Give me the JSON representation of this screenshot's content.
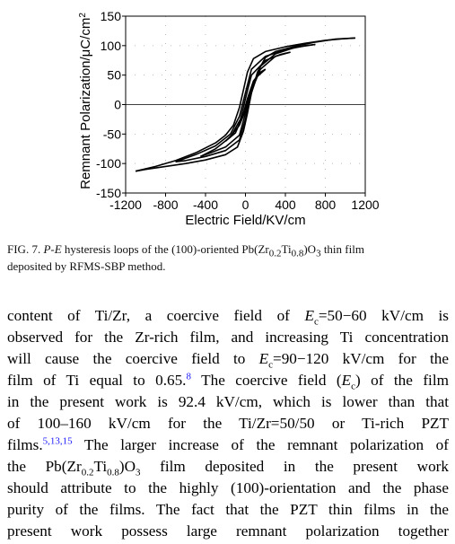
{
  "chart_data": {
    "type": "line",
    "xlabel": "Electric Field/KV/cm",
    "ylabel": "Remnant Polarization/μC/cm",
    "ylabel_sup": "2",
    "xlim": [
      -1200,
      1200
    ],
    "ylim": [
      -150,
      150
    ],
    "x_ticks": [
      -1200,
      -800,
      -400,
      0,
      400,
      800,
      1200
    ],
    "y_ticks": [
      150,
      100,
      50,
      0,
      -50,
      -100,
      -150
    ],
    "x_tick_labels": [
      "-1200",
      "-800",
      "-400",
      "0",
      "400",
      "800",
      "1200"
    ],
    "y_tick_labels": [
      "150",
      "100",
      "50",
      "0",
      "-50",
      "-100",
      "-150"
    ],
    "grid": "dotted",
    "zero_line": true,
    "series": [
      {
        "loop": "large",
        "upper": [
          [
            -1100,
            -113
          ],
          [
            -900,
            -105
          ],
          [
            -700,
            -95
          ],
          [
            -500,
            -82
          ],
          [
            -300,
            -65
          ],
          [
            -200,
            -52
          ],
          [
            -120,
            -35
          ],
          [
            -60,
            -5
          ],
          [
            -20,
            25
          ],
          [
            20,
            55
          ],
          [
            80,
            78
          ],
          [
            200,
            90
          ],
          [
            400,
            98
          ],
          [
            600,
            104
          ],
          [
            800,
            109
          ],
          [
            1000,
            112
          ],
          [
            1100,
            113
          ]
        ],
        "lower": [
          [
            1100,
            113
          ],
          [
            900,
            111
          ],
          [
            700,
            106
          ],
          [
            500,
            99
          ],
          [
            300,
            90
          ],
          [
            200,
            80
          ],
          [
            120,
            55
          ],
          [
            60,
            20
          ],
          [
            20,
            -15
          ],
          [
            -20,
            -45
          ],
          [
            -80,
            -72
          ],
          [
            -200,
            -85
          ],
          [
            -400,
            -94
          ],
          [
            -600,
            -100
          ],
          [
            -800,
            -105
          ],
          [
            -1000,
            -110
          ],
          [
            -1100,
            -113
          ]
        ]
      },
      {
        "loop": "medium",
        "upper": [
          [
            -700,
            -97
          ],
          [
            -500,
            -85
          ],
          [
            -300,
            -70
          ],
          [
            -150,
            -50
          ],
          [
            -60,
            -20
          ],
          [
            0,
            20
          ],
          [
            60,
            60
          ],
          [
            200,
            82
          ],
          [
            400,
            93
          ],
          [
            600,
            100
          ],
          [
            700,
            102
          ]
        ],
        "lower": [
          [
            700,
            102
          ],
          [
            500,
            97
          ],
          [
            300,
            86
          ],
          [
            150,
            65
          ],
          [
            60,
            20
          ],
          [
            0,
            -25
          ],
          [
            -60,
            -60
          ],
          [
            -200,
            -78
          ],
          [
            -400,
            -88
          ],
          [
            -600,
            -95
          ],
          [
            -700,
            -97
          ]
        ]
      },
      {
        "loop": "small",
        "upper": [
          [
            -450,
            -88
          ],
          [
            -300,
            -75
          ],
          [
            -150,
            -55
          ],
          [
            -50,
            -25
          ],
          [
            0,
            10
          ],
          [
            60,
            50
          ],
          [
            200,
            75
          ],
          [
            350,
            85
          ],
          [
            450,
            89
          ]
        ],
        "lower": [
          [
            450,
            89
          ],
          [
            300,
            82
          ],
          [
            150,
            60
          ],
          [
            50,
            20
          ],
          [
            0,
            -15
          ],
          [
            -60,
            -52
          ],
          [
            -200,
            -72
          ],
          [
            -350,
            -82
          ],
          [
            -450,
            -88
          ]
        ]
      },
      {
        "loop": "inner",
        "upper": [
          [
            -200,
            -62
          ],
          [
            -100,
            -48
          ],
          [
            -30,
            -20
          ],
          [
            20,
            10
          ],
          [
            80,
            40
          ],
          [
            150,
            55
          ],
          [
            200,
            60
          ]
        ],
        "lower": [
          [
            200,
            60
          ],
          [
            120,
            48
          ],
          [
            50,
            25
          ],
          [
            0,
            -10
          ],
          [
            -60,
            -35
          ],
          [
            -140,
            -52
          ],
          [
            -200,
            -62
          ]
        ]
      }
    ]
  },
  "caption": {
    "prefix": "FIG. 7. ",
    "pe": "P-E",
    "text1": " hysteresis loops of the (100)-oriented Pb(Zr",
    "sub1": "0.2",
    "text2": "Ti",
    "sub2": "0.8",
    "text3": ")O",
    "sub3": "3",
    "text4": " thin film",
    "line2": "deposited by RFMS-SBP method."
  },
  "body": {
    "l1a": "content of Ti/Zr, a coercive field of ",
    "l1ec": "E",
    "l1sub": "c",
    "l1b": "=50−60 kV/cm is",
    "l2": "observed for the Zr-rich film, and increasing Ti concentration",
    "l3a": "will cause the coercive field to ",
    "l3ec": "E",
    "l3sub": "c",
    "l3b": "=90−120 kV/cm for the",
    "l4a": "film of Ti equal to 0.65.",
    "l4ref": "8",
    "l4b": " The coercive field (",
    "l4ec": "E",
    "l4sub": "c",
    "l4c": ") of the film",
    "l5": "in the present work is 92.4 kV/cm, which is lower than that",
    "l6": "of 100–160 kV/cm for the Ti/Zr=50/50 or Ti-rich PZT",
    "l7a": "films.",
    "l7ref": "5,13,15",
    "l7b": " The larger increase of the remnant polarization of",
    "l8a": "the Pb(Zr",
    "l8sub1": "0.2",
    "l8b": "Ti",
    "l8sub2": "0.8",
    "l8c": ")O",
    "l8sub3": "3",
    "l8d": " film deposited in the present work",
    "l9": "should attribute to the highly (100)-orientation and the phase",
    "l10": "purity of the films. The fact that the PZT thin films in the",
    "l11": "present work possess large remnant polarization together"
  }
}
